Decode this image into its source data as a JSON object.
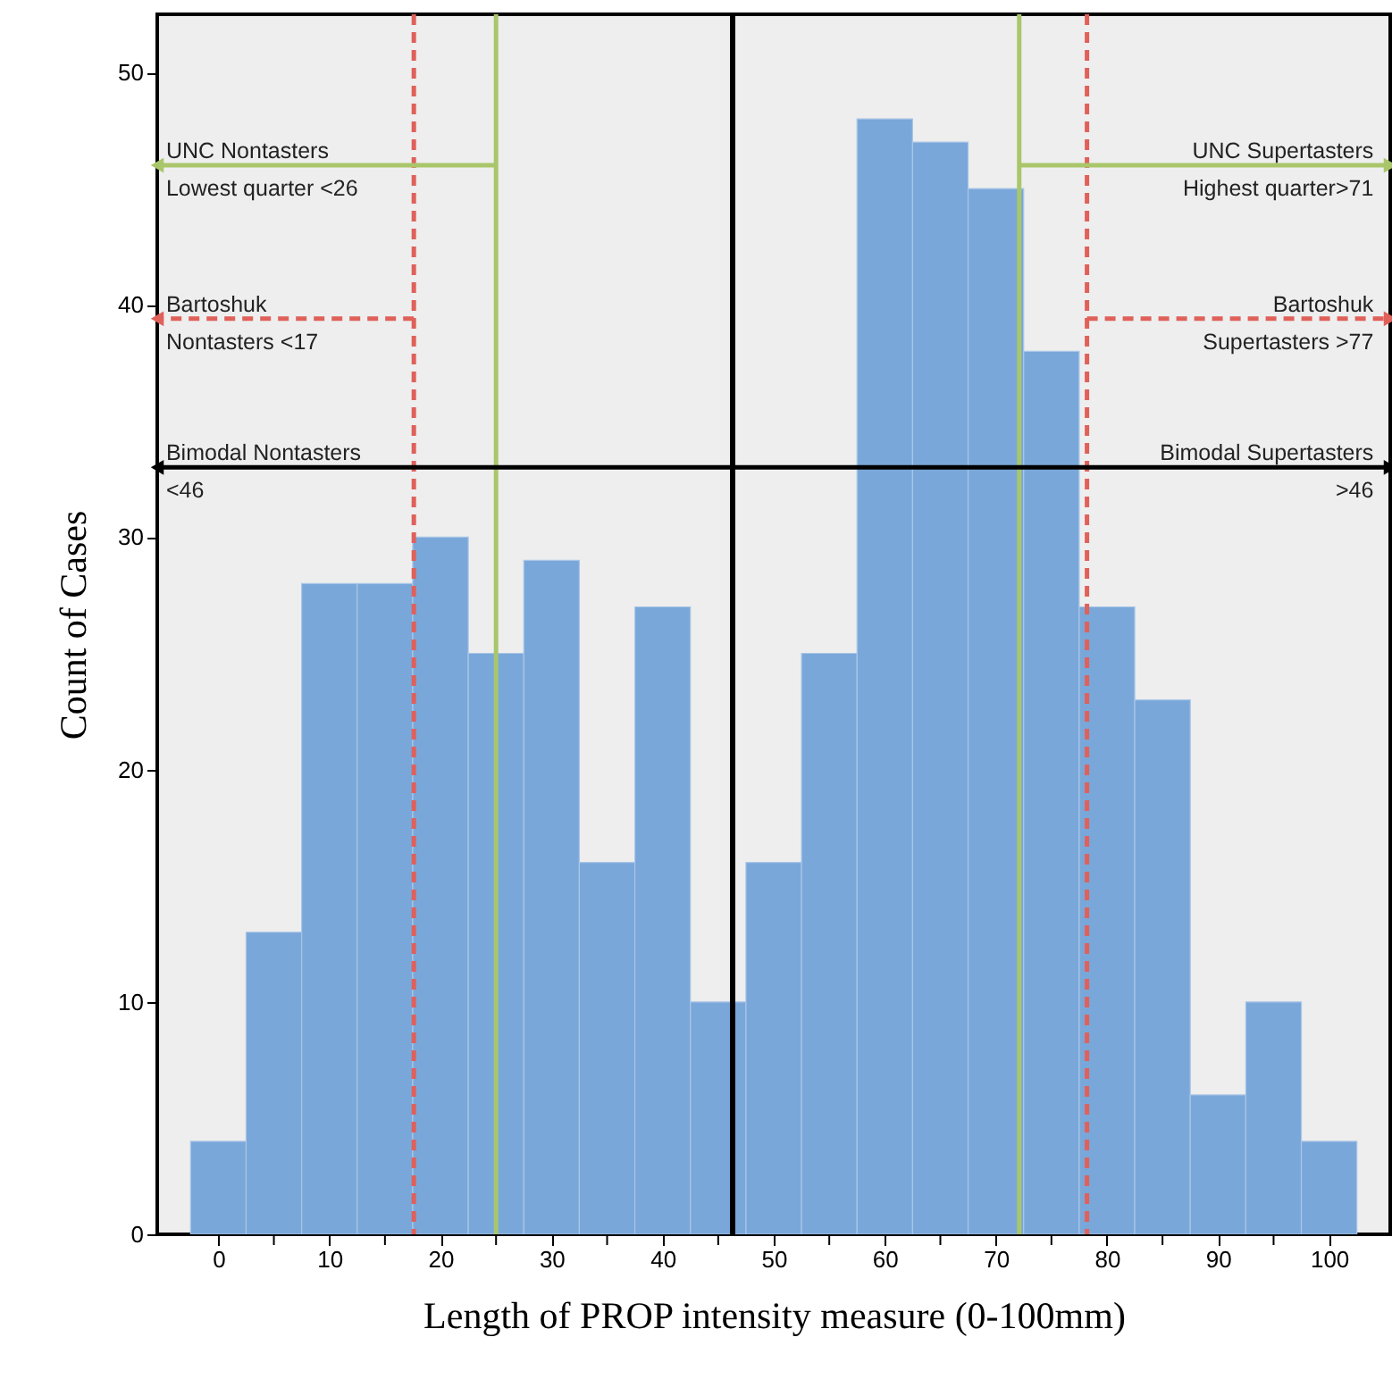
{
  "chart_data": {
    "type": "histogram",
    "xlabel": "Length of PROP intensity measure (0-100mm)",
    "ylabel": "Count of Cases",
    "bins": [
      -2.5,
      2.5,
      7.5,
      12.5,
      17.5,
      22.5,
      27.5,
      32.5,
      37.5,
      42.5,
      47.5,
      52.5,
      57.5,
      62.5,
      67.5,
      72.5,
      77.5,
      82.5,
      87.5,
      92.5,
      97.5,
      102.5
    ],
    "values": [
      4,
      13,
      28,
      28,
      30,
      25,
      29,
      16,
      27,
      10,
      16,
      25,
      48,
      47,
      45,
      38,
      27,
      23,
      6,
      10,
      4
    ],
    "color": "#7aa7d9",
    "xlim": [
      -5.5,
      105.5
    ],
    "xticks": [
      0,
      {
        "value": 5,
        "label": null
      },
      10,
      {
        "value": 15,
        "label": null
      },
      20,
      {
        "value": 25,
        "label": null
      },
      30,
      {
        "value": 35,
        "label": null
      },
      40,
      {
        "value": 45,
        "label": null
      },
      50,
      {
        "value": 55,
        "label": null
      },
      60,
      {
        "value": 65,
        "label": null
      },
      70,
      {
        "value": 75,
        "label": null
      },
      80,
      {
        "value": 85,
        "label": null
      },
      90,
      {
        "value": 95,
        "label": null
      },
      100
    ],
    "ylim": [
      0,
      52.5
    ],
    "yticks": [
      0,
      10,
      20,
      30,
      40,
      50
    ],
    "ref_lines": [
      {
        "axis": "x",
        "value": 17.6,
        "color": "#e0605a",
        "line_style": "dashed"
      },
      {
        "axis": "x",
        "value": 25,
        "color": "#a9c66a",
        "line_style": "solid"
      },
      {
        "axis": "x",
        "value": 46.3,
        "color": "#000000",
        "line_style": "solid"
      },
      {
        "axis": "x",
        "value": 72.1,
        "color": "#a9c66a",
        "line_style": "solid"
      },
      {
        "axis": "x",
        "value": 78.2,
        "color": "#e0605a",
        "line_style": "dashed"
      }
    ],
    "annotations": [
      {
        "text": "UNC Nontasters\nLowest quarter <26",
        "x": 25,
        "y": 46
      },
      {
        "text": "Bartoshuk\nNontasters <17",
        "x": 17.6,
        "y": 39.4
      },
      {
        "text": "Bimodal Nontasters\n<46",
        "x": 46.3,
        "y": 33
      },
      {
        "text": "UNC Supertasters\nHighest quarter>71",
        "x": 72.1,
        "y": 46
      },
      {
        "text": "Bartoshuk\nSupertasters >77",
        "x": 78.2,
        "y": 39.4
      },
      {
        "text": "Bimodal Supertasters\n>46",
        "x": 46.3,
        "y": 33
      }
    ],
    "grid": false
  }
}
